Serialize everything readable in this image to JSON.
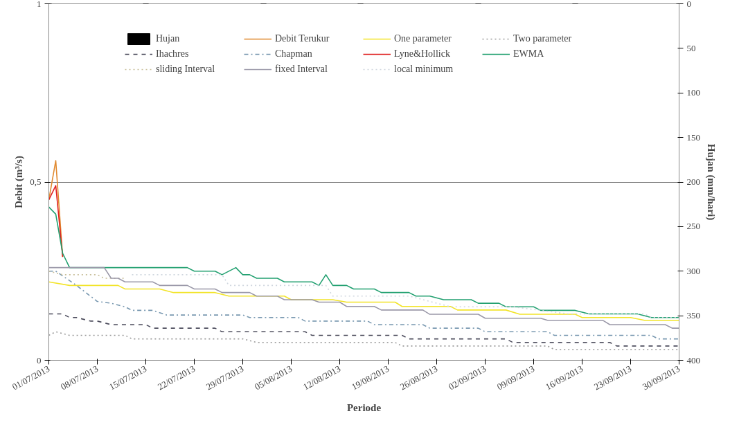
{
  "chart_data": {
    "type": "line",
    "xlabel": "Periode",
    "ylabel": "Debit (m³/s)",
    "y2label": "Hujan (mm/hari)",
    "xlim": [
      "2013-07-01",
      "2013-09-30"
    ],
    "ylim": [
      0,
      1
    ],
    "yticks": [
      0,
      {
        "value": 0.5,
        "label": "0,5"
      },
      1
    ],
    "y2lim": [
      400,
      0
    ],
    "y2ticks": [
      0,
      50,
      100,
      150,
      200,
      250,
      300,
      350,
      400
    ],
    "xticks": [
      {
        "value": "2013-07-01",
        "label": "01/07/2013"
      },
      {
        "value": "2013-07-08",
        "label": "08/07/2013"
      },
      {
        "value": "2013-07-15",
        "label": "15/07/2013"
      },
      {
        "value": "2013-07-22",
        "label": "22/07/2013"
      },
      {
        "value": "2013-07-29",
        "label": "29/07/2013"
      },
      {
        "value": "2013-08-05",
        "label": "05/08/2013"
      },
      {
        "value": "2013-08-12",
        "label": "12/08/2013"
      },
      {
        "value": "2013-08-19",
        "label": "19/08/2013"
      },
      {
        "value": "2013-08-26",
        "label": "26/08/2013"
      },
      {
        "value": "2013-09-02",
        "label": "02/09/2013"
      },
      {
        "value": "2013-09-09",
        "label": "09/09/2013"
      },
      {
        "value": "2013-09-16",
        "label": "16/09/2013"
      },
      {
        "value": "2013-09-23",
        "label": "23/09/2013"
      },
      {
        "value": "2013-09-30",
        "label": "30/09/2013"
      }
    ],
    "grid": "y",
    "legend": "top",
    "series": [
      {
        "name": "Hujan",
        "type": "bar",
        "axis": "y2",
        "color": "#000000",
        "x": [
          "2013-07-01",
          "2013-07-15",
          "2013-08-01",
          "2013-08-15",
          "2013-09-01",
          "2013-09-15",
          "2013-09-30"
        ],
        "values": [
          0,
          0,
          0,
          0,
          0,
          0,
          0
        ]
      },
      {
        "name": "Debit Terukur",
        "color": "#e0892e",
        "line_style": "solid",
        "x": [
          "2013-07-01",
          "2013-07-02",
          "2013-07-03"
        ],
        "values": [
          0.45,
          0.56,
          0.29
        ]
      },
      {
        "name": "One parameter",
        "color": "#f2e428",
        "line_style": "solid",
        "x": [
          "2013-07-01",
          "2013-07-04",
          "2013-07-11",
          "2013-07-12",
          "2013-07-17",
          "2013-07-19",
          "2013-07-25",
          "2013-07-27",
          "2013-08-04",
          "2013-08-05",
          "2013-08-11",
          "2013-08-13",
          "2013-08-20",
          "2013-08-21",
          "2013-08-28",
          "2013-08-29",
          "2013-09-05",
          "2013-09-07",
          "2013-09-15",
          "2013-09-16",
          "2013-09-23",
          "2013-09-25",
          "2013-09-30"
        ],
        "values": [
          0.22,
          0.21,
          0.21,
          0.2,
          0.2,
          0.19,
          0.19,
          0.18,
          0.18,
          0.17,
          0.17,
          0.163,
          0.163,
          0.151,
          0.151,
          0.141,
          0.141,
          0.129,
          0.129,
          0.12,
          0.12,
          0.112,
          0.112
        ]
      },
      {
        "name": "Two parameter",
        "color": "#9a9a9a",
        "line_style": "dotted",
        "x": [
          "2013-07-01",
          "2013-07-02",
          "2013-07-04",
          "2013-07-12",
          "2013-07-13",
          "2013-07-29",
          "2013-07-31",
          "2013-08-20",
          "2013-08-21",
          "2013-09-11",
          "2013-09-12",
          "2013-09-30"
        ],
        "values": [
          0.07,
          0.08,
          0.07,
          0.07,
          0.06,
          0.06,
          0.05,
          0.05,
          0.04,
          0.04,
          0.03,
          0.03
        ]
      },
      {
        "name": "Ihachres",
        "color": "#4c4c5c",
        "line_style": "dashed",
        "x": [
          "2013-07-01",
          "2013-07-03",
          "2013-07-04",
          "2013-07-05",
          "2013-07-07",
          "2013-07-08",
          "2013-07-10",
          "2013-07-15",
          "2013-07-16",
          "2013-07-25",
          "2013-07-26",
          "2013-08-07",
          "2013-08-08",
          "2013-08-21",
          "2013-08-22",
          "2013-09-05",
          "2013-09-06",
          "2013-09-20",
          "2013-09-21",
          "2013-09-30"
        ],
        "values": [
          0.13,
          0.13,
          0.12,
          0.12,
          0.11,
          0.11,
          0.1,
          0.1,
          0.09,
          0.09,
          0.08,
          0.08,
          0.07,
          0.07,
          0.06,
          0.06,
          0.05,
          0.05,
          0.04,
          0.04
        ]
      },
      {
        "name": "Chapman",
        "color": "#7898b0",
        "line_style": "dashdot",
        "x": [
          "2013-07-01",
          "2013-07-02",
          "2013-07-05",
          "2013-07-08",
          "2013-07-10",
          "2013-07-12",
          "2013-07-13",
          "2013-07-16",
          "2013-07-18",
          "2013-07-29",
          "2013-07-30",
          "2013-08-06",
          "2013-08-07",
          "2013-08-16",
          "2013-08-17",
          "2013-08-24",
          "2013-08-25",
          "2013-09-01",
          "2013-09-02",
          "2013-09-11",
          "2013-09-12",
          "2013-09-26",
          "2013-09-27",
          "2013-09-30"
        ],
        "values": [
          0.25,
          0.25,
          0.21,
          0.165,
          0.16,
          0.15,
          0.14,
          0.14,
          0.127,
          0.127,
          0.12,
          0.12,
          0.11,
          0.11,
          0.1,
          0.1,
          0.09,
          0.09,
          0.08,
          0.08,
          0.07,
          0.07,
          0.06,
          0.06
        ]
      },
      {
        "name": "Lyne&Hollick",
        "color": "#e02020",
        "line_style": "solid",
        "x": [
          "2013-07-01",
          "2013-07-02",
          "2013-07-03"
        ],
        "values": [
          0.45,
          0.49,
          0.29
        ]
      },
      {
        "name": "EWMA",
        "color": "#22a070",
        "line_style": "solid",
        "x": [
          "2013-07-01",
          "2013-07-02",
          "2013-07-03",
          "2013-07-04",
          "2013-07-21",
          "2013-07-22",
          "2013-07-25",
          "2013-07-26",
          "2013-07-28",
          "2013-07-29",
          "2013-07-30",
          "2013-07-31",
          "2013-08-03",
          "2013-08-04",
          "2013-08-08",
          "2013-08-09",
          "2013-08-10",
          "2013-08-11",
          "2013-08-13",
          "2013-08-14",
          "2013-08-17",
          "2013-08-18",
          "2013-08-22",
          "2013-08-23",
          "2013-08-25",
          "2013-08-27",
          "2013-08-31",
          "2013-09-01",
          "2013-09-04",
          "2013-09-05",
          "2013-09-09",
          "2013-09-10",
          "2013-09-15",
          "2013-09-17",
          "2013-09-24",
          "2013-09-26",
          "2013-09-30"
        ],
        "values": [
          0.43,
          0.41,
          0.3,
          0.26,
          0.26,
          0.25,
          0.25,
          0.24,
          0.26,
          0.24,
          0.24,
          0.23,
          0.23,
          0.22,
          0.22,
          0.21,
          0.24,
          0.21,
          0.21,
          0.2,
          0.2,
          0.19,
          0.19,
          0.18,
          0.18,
          0.17,
          0.17,
          0.16,
          0.16,
          0.15,
          0.15,
          0.14,
          0.14,
          0.13,
          0.13,
          0.12,
          0.12
        ]
      },
      {
        "name": "sliding Interval",
        "color": "#c8bf9a",
        "line_style": "dotted",
        "x": [
          "2013-07-01",
          "2013-07-03",
          "2013-07-08",
          "2013-07-09",
          "2013-07-12"
        ],
        "values": [
          0.25,
          0.24,
          0.24,
          0.23,
          0.23
        ]
      },
      {
        "name": "fixed Interval",
        "color": "#9a98a8",
        "line_style": "solid",
        "x": [
          "2013-07-01",
          "2013-07-09",
          "2013-07-10",
          "2013-07-11",
          "2013-07-12",
          "2013-07-16",
          "2013-07-17",
          "2013-07-21",
          "2013-07-22",
          "2013-07-25",
          "2013-07-26",
          "2013-07-30",
          "2013-07-31",
          "2013-08-03",
          "2013-08-04",
          "2013-08-08",
          "2013-08-09",
          "2013-08-12",
          "2013-08-13",
          "2013-08-17",
          "2013-08-18",
          "2013-08-24",
          "2013-08-25",
          "2013-09-01",
          "2013-09-02",
          "2013-09-10",
          "2013-09-11",
          "2013-09-19",
          "2013-09-20",
          "2013-09-28",
          "2013-09-29",
          "2013-09-30"
        ],
        "values": [
          0.26,
          0.26,
          0.23,
          0.23,
          0.22,
          0.22,
          0.21,
          0.21,
          0.2,
          0.2,
          0.19,
          0.19,
          0.18,
          0.18,
          0.17,
          0.17,
          0.163,
          0.163,
          0.151,
          0.151,
          0.141,
          0.141,
          0.129,
          0.129,
          0.118,
          0.118,
          0.112,
          0.112,
          0.1,
          0.1,
          0.09,
          0.09
        ]
      },
      {
        "name": "local minimum",
        "color": "#cfd6de",
        "line_style": "dotted",
        "x": [
          "2013-07-13",
          "2013-07-26",
          "2013-07-27",
          "2013-08-10",
          "2013-08-11",
          "2013-08-22",
          "2013-08-28",
          "2013-09-06",
          "2013-09-14",
          "2013-09-25",
          "2013-09-26",
          "2013-09-30"
        ],
        "values": [
          0.24,
          0.24,
          0.21,
          0.21,
          0.18,
          0.18,
          0.15,
          0.15,
          0.13,
          0.13,
          0.12,
          0.12
        ]
      }
    ]
  }
}
